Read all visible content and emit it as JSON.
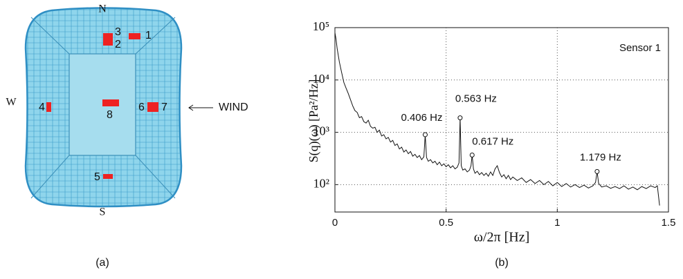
{
  "diagram": {
    "north": "N",
    "south": "S",
    "west": "W",
    "wind": "WIND",
    "sensors": [
      "1",
      "2",
      "3",
      "4",
      "5",
      "6",
      "7",
      "8"
    ],
    "caption": "(a)"
  },
  "chart_data": {
    "type": "line",
    "caption": "(b)",
    "x_label": "ω/2π  [Hz]",
    "y_label": "S(q)(ω)  [Pa²/Hz]",
    "annotation": "Sensor 1",
    "log_y": true,
    "grid": true,
    "xlim": [
      0,
      1.5
    ],
    "xticks": [
      0,
      0.5,
      1,
      1.5
    ],
    "ylim": [
      30,
      100000
    ],
    "yticks": [
      {
        "value": 100,
        "label": "10²"
      },
      {
        "value": 1000,
        "label": "10³"
      },
      {
        "value": 10000,
        "label": "10⁴"
      },
      {
        "value": 100000,
        "label": "10⁵"
      }
    ],
    "peaks": [
      {
        "label": "0.406 Hz",
        "x": 0.406,
        "y": 900
      },
      {
        "label": "0.563 Hz",
        "x": 0.563,
        "y": 1890
      },
      {
        "label": "0.617 Hz",
        "x": 0.617,
        "y": 368
      },
      {
        "label": "1.179 Hz",
        "x": 1.179,
        "y": 178
      }
    ],
    "x": [
      0,
      0.005,
      0.01,
      0.02,
      0.03,
      0.04,
      0.05,
      0.06,
      0.07,
      0.08,
      0.09,
      0.1,
      0.11,
      0.12,
      0.13,
      0.14,
      0.15,
      0.16,
      0.17,
      0.18,
      0.19,
      0.2,
      0.21,
      0.22,
      0.23,
      0.24,
      0.25,
      0.26,
      0.27,
      0.28,
      0.29,
      0.3,
      0.31,
      0.32,
      0.33,
      0.34,
      0.35,
      0.36,
      0.37,
      0.38,
      0.39,
      0.4,
      0.406,
      0.412,
      0.42,
      0.43,
      0.44,
      0.45,
      0.46,
      0.47,
      0.48,
      0.49,
      0.5,
      0.51,
      0.52,
      0.53,
      0.54,
      0.55,
      0.558,
      0.563,
      0.568,
      0.575,
      0.585,
      0.595,
      0.605,
      0.612,
      0.617,
      0.623,
      0.63,
      0.64,
      0.65,
      0.66,
      0.67,
      0.68,
      0.69,
      0.7,
      0.71,
      0.72,
      0.73,
      0.74,
      0.75,
      0.76,
      0.77,
      0.78,
      0.79,
      0.8,
      0.82,
      0.84,
      0.86,
      0.88,
      0.9,
      0.92,
      0.94,
      0.96,
      0.98,
      1.0,
      1.02,
      1.04,
      1.06,
      1.08,
      1.1,
      1.12,
      1.14,
      1.16,
      1.172,
      1.179,
      1.186,
      1.2,
      1.22,
      1.24,
      1.26,
      1.28,
      1.3,
      1.32,
      1.34,
      1.36,
      1.38,
      1.4,
      1.42,
      1.44,
      1.45,
      1.46
    ],
    "series": [
      {
        "color": "#111111",
        "values": [
          80000,
          60000,
          40000,
          22000,
          14000,
          9000,
          7000,
          5500,
          4200,
          3200,
          2600,
          2400,
          1900,
          2000,
          1600,
          1500,
          1700,
          1300,
          1200,
          1250,
          1000,
          1100,
          850,
          900,
          750,
          800,
          650,
          700,
          560,
          600,
          480,
          520,
          420,
          460,
          390,
          430,
          350,
          380,
          330,
          360,
          300,
          340,
          900,
          330,
          280,
          300,
          260,
          280,
          240,
          270,
          230,
          250,
          220,
          240,
          210,
          230,
          200,
          215,
          260,
          1890,
          230,
          190,
          200,
          175,
          190,
          230,
          368,
          200,
          165,
          180,
          155,
          170,
          150,
          165,
          145,
          175,
          150,
          200,
          230,
          170,
          140,
          155,
          130,
          150,
          125,
          140,
          120,
          135,
          110,
          125,
          105,
          120,
          100,
          115,
          95,
          110,
          92,
          105,
          90,
          100,
          88,
          98,
          86,
          95,
          110,
          178,
          105,
          90,
          95,
          85,
          92,
          84,
          95,
          82,
          90,
          80,
          92,
          84,
          95,
          88,
          95,
          40
        ]
      }
    ]
  }
}
